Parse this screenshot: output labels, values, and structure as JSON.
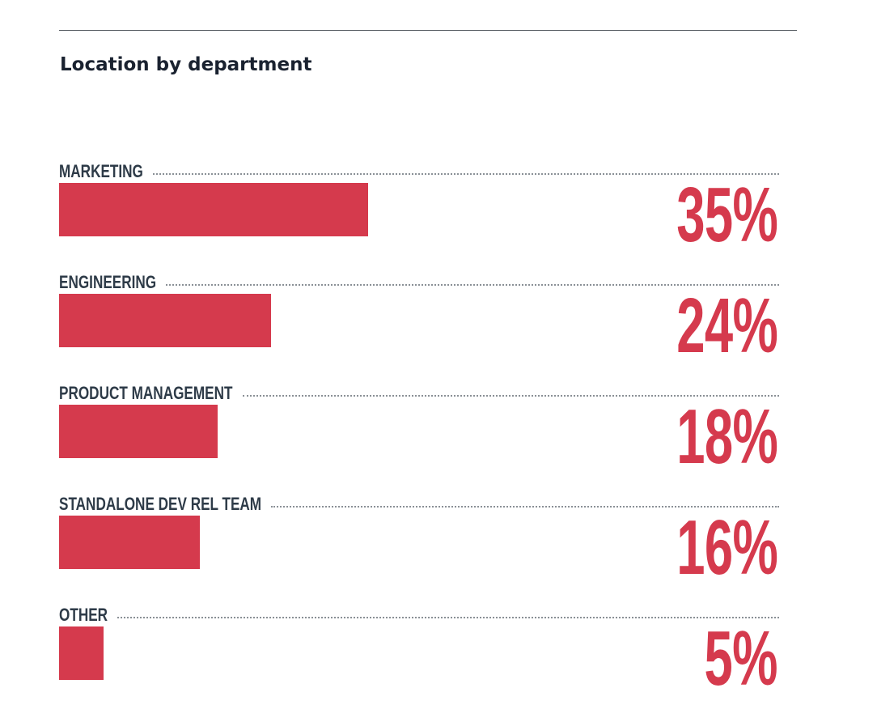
{
  "chart_data": {
    "type": "bar",
    "orientation": "horizontal",
    "title": "Location by department",
    "categories": [
      "MARKETING",
      "ENGINEERING",
      "PRODUCT MANAGEMENT",
      "STANDALONE DEV REL TEAM",
      "OTHER"
    ],
    "values": [
      35,
      24,
      18,
      16,
      5
    ],
    "value_labels": [
      "35%",
      "24%",
      "18%",
      "16%",
      "5%"
    ],
    "unit": "%",
    "grid": false,
    "legend": "none",
    "bar_color": "#d53a4d",
    "label_color": "#2e3b48"
  }
}
